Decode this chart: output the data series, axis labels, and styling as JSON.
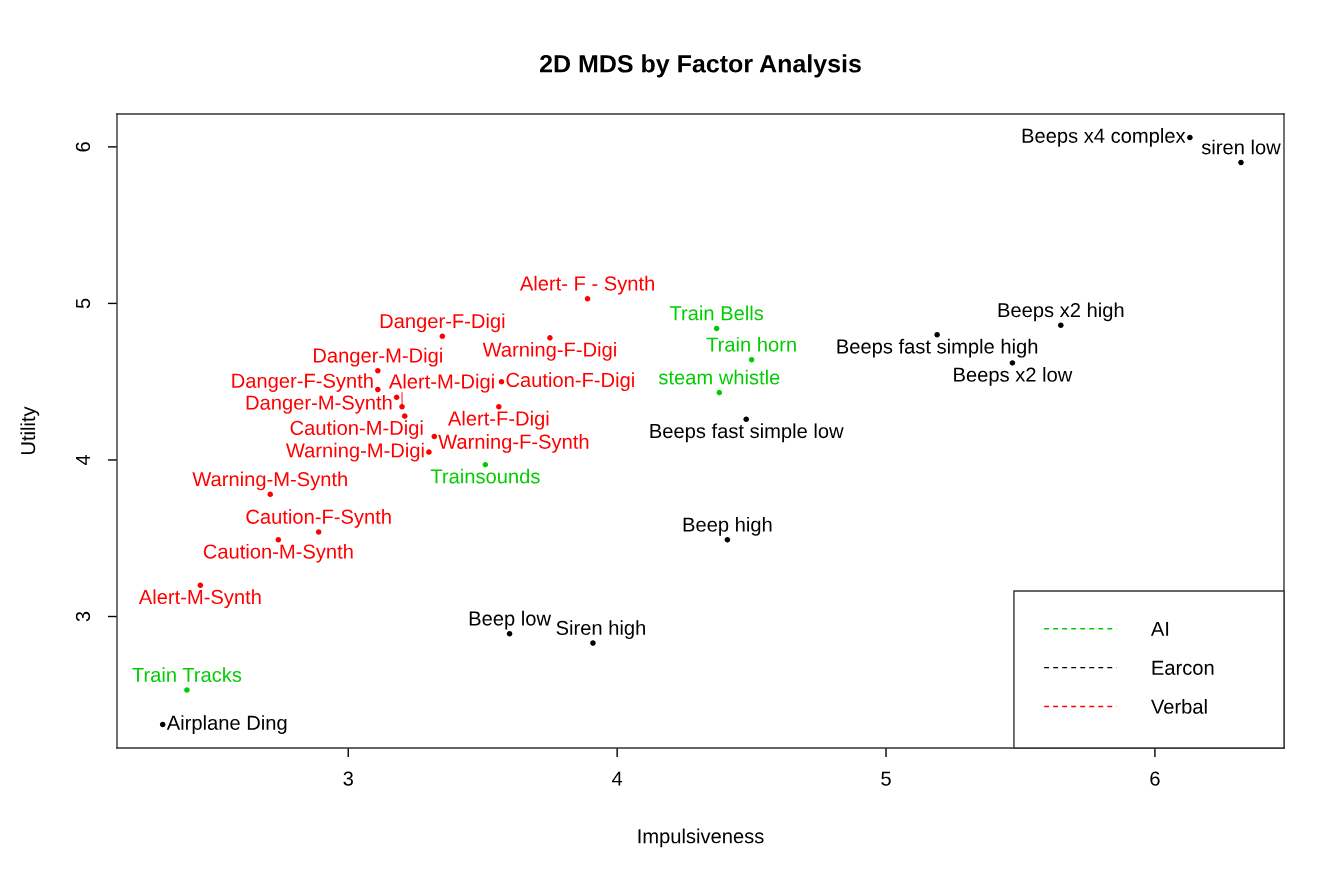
{
  "chart_data": {
    "type": "scatter",
    "title": "2D MDS by Factor Analysis",
    "xlabel": "Impulsiveness",
    "ylabel": "Utility",
    "xlim": [
      2.14,
      6.48
    ],
    "ylim": [
      2.16,
      6.21
    ],
    "xticks": [
      3,
      4,
      5,
      6
    ],
    "yticks": [
      3,
      4,
      5,
      6
    ],
    "marker": "circle",
    "line_style": "dashed",
    "legend": "bottom right",
    "series": [
      {
        "name": "AI",
        "color": "#00cd00",
        "x": [
          4.37,
          4.5,
          4.38,
          3.51,
          2.4
        ],
        "values": [
          4.84,
          4.64,
          4.43,
          3.97,
          2.53
        ],
        "value_labels": [
          "Train Bells",
          "Train horn",
          "steam whistle",
          "Trainsounds",
          "Train Tracks"
        ]
      },
      {
        "name": "Earcon",
        "color": "#000000",
        "x": [
          6.13,
          6.32,
          5.19,
          5.65,
          5.47,
          4.48,
          4.41,
          3.6,
          3.91,
          2.31
        ],
        "values": [
          6.06,
          5.9,
          4.8,
          4.86,
          4.62,
          4.26,
          3.49,
          2.89,
          2.83,
          2.31
        ],
        "value_labels": [
          "Beeps x4 complex",
          "siren low",
          "Beeps fast simple high",
          "Beeps x2 high",
          "Beeps x2 low",
          "Beeps fast simple low",
          "Beep high",
          "Beep low",
          "Siren high",
          "Airplane Ding"
        ]
      },
      {
        "name": "Verbal",
        "color": "#ff0000",
        "x": [
          3.89,
          3.35,
          3.75,
          3.11,
          3.57,
          3.11,
          3.18,
          3.2,
          3.56,
          3.21,
          3.32,
          3.3,
          2.71,
          2.89,
          2.74,
          2.45
        ],
        "values": [
          5.03,
          4.79,
          4.78,
          4.57,
          4.5,
          4.45,
          4.4,
          4.34,
          4.34,
          4.28,
          4.15,
          4.05,
          3.78,
          3.54,
          3.49,
          3.2
        ],
        "value_labels": [
          "Alert- F - Synth",
          "Danger-F-Digi",
          "Warning-F-Digi",
          "Danger-M-Digi",
          "Caution-F-Digi",
          "Danger-F-Synth",
          "Danger-M-Synth",
          "Alert-M-Digi",
          "Alert-F-Digi",
          "Caution-M-Digi",
          "Warning-F-Synth",
          "Warning-M-Digi",
          "Warning-M-Synth",
          "Caution-F-Synth",
          "Caution-M-Synth",
          "Alert-M-Synth"
        ]
      }
    ]
  }
}
